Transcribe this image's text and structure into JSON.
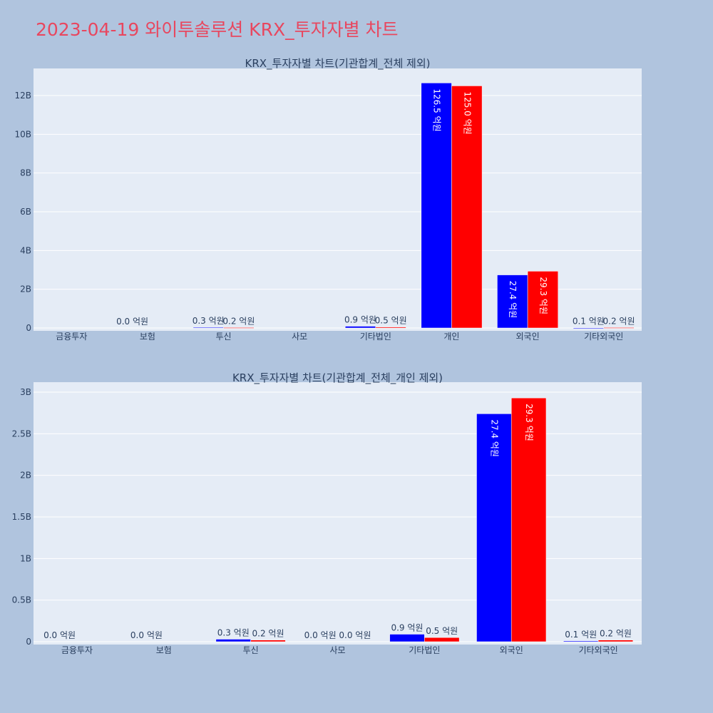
{
  "page_title": "2023-04-19 와이투솔루션 KRX_투자자별 차트",
  "colors": {
    "buy": "#0000ff",
    "sell": "#ff0000",
    "plot_bg": "#e5ecf6",
    "page_bg": "#b0c4de",
    "title": "#e8475f"
  },
  "chart_data": [
    {
      "type": "bar",
      "title": "KRX_투자자별 차트(기관합계_전체 제외)",
      "categories": [
        "금융투자",
        "보험",
        "투신",
        "사모",
        "기타법인",
        "개인",
        "외국인",
        "기타외국인"
      ],
      "ylim": [
        0,
        13.4
      ],
      "yticks": [
        0,
        2,
        4,
        6,
        8,
        10,
        12
      ],
      "ytick_labels": [
        "0",
        "2B",
        "4B",
        "6B",
        "8B",
        "10B",
        "12B"
      ],
      "series": [
        {
          "color": "#0000ff",
          "values": [
            0,
            0.0,
            0.03,
            0,
            0.09,
            12.65,
            2.74,
            0.01
          ],
          "labels": [
            "",
            "0.0 억원",
            "0.3 억원",
            "",
            "0.9 억원",
            "126.5 억원",
            "27.4 억원",
            "0.1 억원"
          ]
        },
        {
          "color": "#ff0000",
          "values": [
            0,
            0,
            0.02,
            0,
            0.05,
            12.5,
            2.93,
            0.02
          ],
          "labels": [
            "",
            "",
            "0.2 억원",
            "",
            "0.5 억원",
            "125.0 억원",
            "29.3 억원",
            "0.2 억원"
          ]
        }
      ],
      "grid": true
    },
    {
      "type": "bar",
      "title": "KRX_투자자별 차트(기관합계_전체_개인 제외)",
      "categories": [
        "금융투자",
        "보험",
        "투신",
        "사모",
        "기타법인",
        "외국인",
        "기타외국인"
      ],
      "ylim": [
        0,
        3.12
      ],
      "yticks": [
        0,
        0.5,
        1,
        1.5,
        2,
        2.5,
        3
      ],
      "ytick_labels": [
        "0",
        "0.5B",
        "1B",
        "1.5B",
        "2B",
        "2.5B",
        "3B"
      ],
      "series": [
        {
          "color": "#0000ff",
          "values": [
            0,
            0,
            0.03,
            0,
            0.09,
            2.74,
            0.01
          ],
          "labels": [
            "0.0 억원",
            "0.0 억원",
            "0.3 억원",
            "0.0 억원",
            "0.9 억원",
            "27.4 억원",
            "0.1 억원"
          ]
        },
        {
          "color": "#ff0000",
          "values": [
            0,
            0,
            0.02,
            0,
            0.05,
            2.93,
            0.02
          ],
          "labels": [
            "",
            "",
            "0.2 억원",
            "0.0 억원",
            "0.5 억원",
            "29.3 억원",
            "0.2 억원"
          ]
        }
      ],
      "grid": true
    }
  ]
}
